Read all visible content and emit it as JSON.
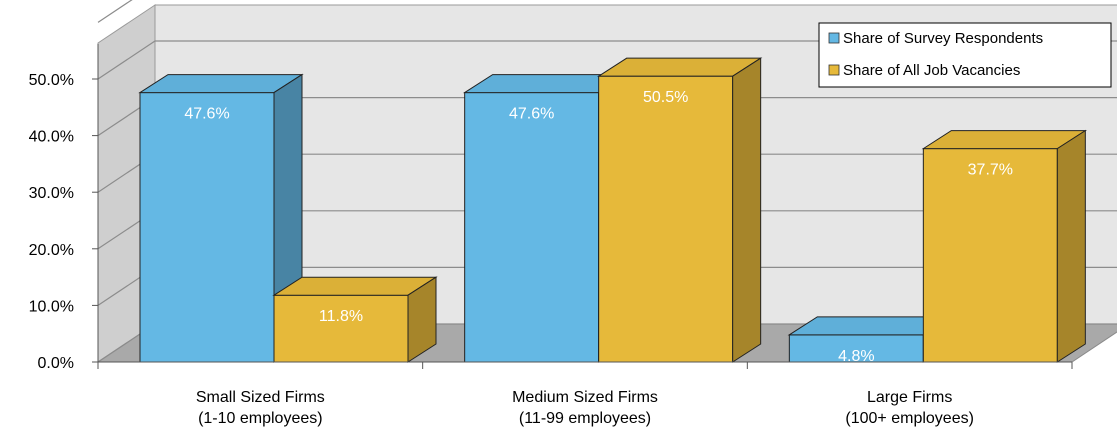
{
  "chart_data": {
    "type": "bar",
    "title": "",
    "xlabel": "",
    "ylabel": "",
    "ylim": [
      0,
      50
    ],
    "y_ticks": [
      "0.0%",
      "10.0%",
      "20.0%",
      "30.0%",
      "40.0%",
      "50.0%"
    ],
    "categories": [
      {
        "line1": "Small Sized Firms",
        "line2": "(1-10 employees)"
      },
      {
        "line1": "Medium Sized Firms",
        "line2": "(11-99 employees)"
      },
      {
        "line1": "Large Firms",
        "line2": "(100+ employees)"
      }
    ],
    "series": [
      {
        "name": "Share of Survey Respondents",
        "color": "#64b8e4",
        "values": [
          47.6,
          47.6,
          4.8
        ],
        "labels": [
          "47.6%",
          "47.6%",
          "4.8%"
        ]
      },
      {
        "name": "Share of All Job Vacancies",
        "color": "#e6b93a",
        "values": [
          11.8,
          50.5,
          37.7
        ],
        "labels": [
          "11.8%",
          "50.5%",
          "37.7%"
        ]
      }
    ],
    "grid": true,
    "three_d": true,
    "legend_position": "top-right"
  }
}
